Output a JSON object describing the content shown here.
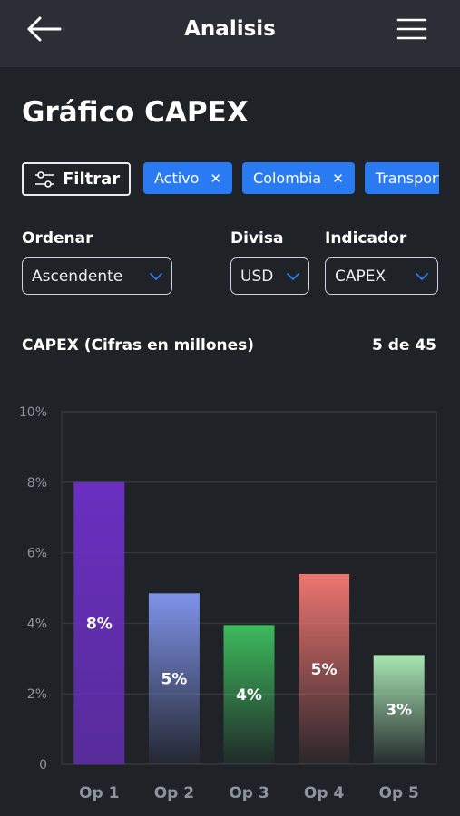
{
  "header": {
    "title": "Analisis",
    "back_icon": "arrow-left-icon",
    "menu_icon": "hamburger-menu-icon"
  },
  "page": {
    "title": "Gráfico CAPEX"
  },
  "filters": {
    "button_label": "Filtrar",
    "button_icon": "sliders-icon",
    "chips": [
      {
        "label": "Activo",
        "remove_icon": "close-icon"
      },
      {
        "label": "Colombia",
        "remove_icon": "close-icon"
      },
      {
        "label": "Transporte",
        "remove_icon": "close-icon"
      }
    ],
    "chip_color": "#2a7af2"
  },
  "controls": {
    "order": {
      "label": "Ordenar",
      "value": "Ascendente"
    },
    "currency": {
      "label": "Divisa",
      "value": "USD"
    },
    "indicator": {
      "label": "Indicador",
      "value": "CAPEX"
    },
    "chevron_color": "#2a7af2"
  },
  "chart_section": {
    "title": "CAPEX (Cifras en millones)",
    "pagination": "5 de 45"
  },
  "chart_data": {
    "type": "bar",
    "categories": [
      "Op 1",
      "Op 2",
      "Op 3",
      "Op 4",
      "Op 5"
    ],
    "values": [
      8.0,
      4.85,
      3.95,
      5.4,
      3.1
    ],
    "data_labels": [
      "8%",
      "5%",
      "4%",
      "5%",
      "3%"
    ],
    "ylim": [
      0,
      10
    ],
    "yticks": [
      0,
      2,
      4,
      6,
      8,
      10
    ],
    "ytick_labels": [
      "0",
      "2%",
      "4%",
      "6%",
      "8%",
      "10%"
    ],
    "grid": true,
    "bar_colors": [
      "#6a2fc0",
      "#7f93ea",
      "#3dbb5c",
      "#ee7570",
      "#a9e6b3"
    ],
    "title": "",
    "xlabel": "",
    "ylabel": ""
  }
}
